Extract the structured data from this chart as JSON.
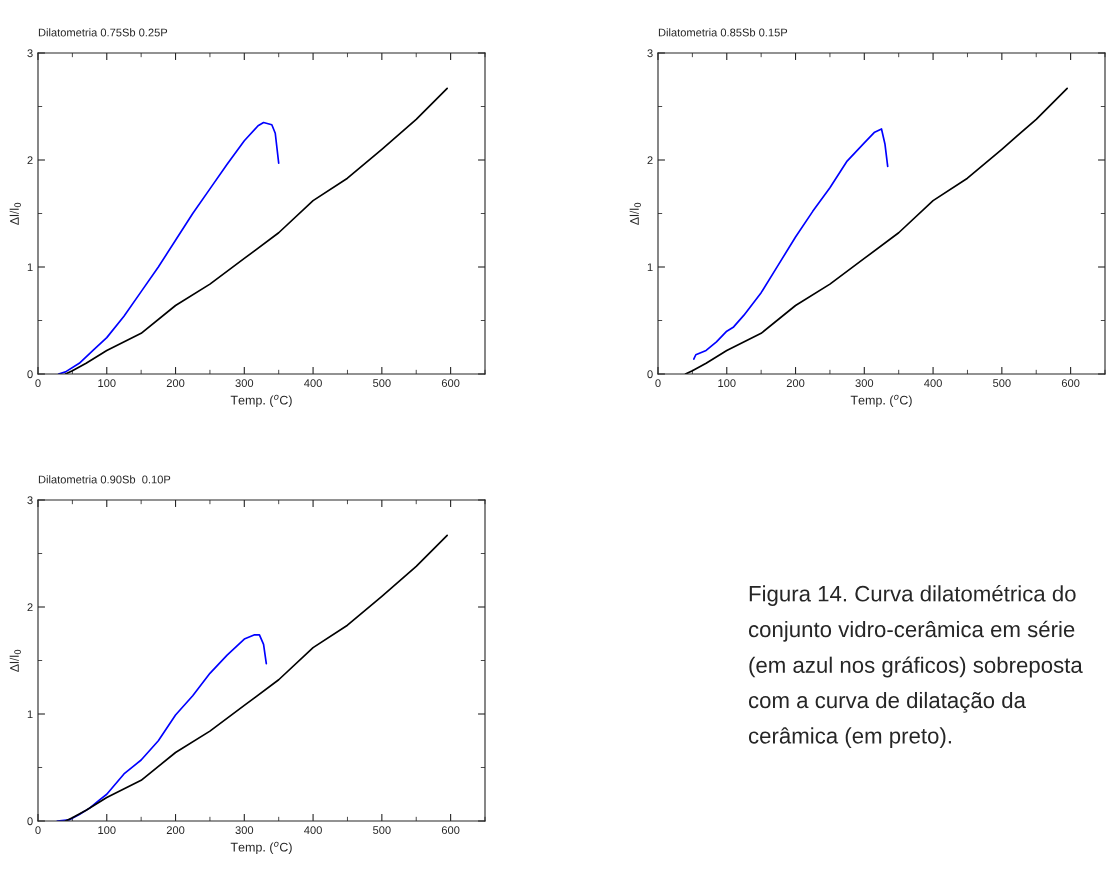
{
  "chart_data": [
    {
      "type": "line",
      "title": "Dilatometria 0.75Sb 0.25P",
      "xlabel": "Temp. ($^{o}$C)",
      "ylabel": "Δl/l$_{0}$",
      "xlim": [
        0,
        650
      ],
      "xticks": [
        0,
        100,
        200,
        300,
        400,
        500,
        600
      ],
      "ylim": [
        0,
        3
      ],
      "yticks": [
        0,
        1,
        2,
        3
      ],
      "grid": false,
      "legend": false,
      "marker": "none",
      "line_style": "solid",
      "series": [
        {
          "color": "#0000ff",
          "x": [
            30,
            40,
            60,
            80,
            100,
            125,
            150,
            175,
            200,
            225,
            250,
            275,
            300,
            320,
            328,
            340,
            345,
            350
          ],
          "values": [
            0,
            0.02,
            0.1,
            0.22,
            0.34,
            0.54,
            0.77,
            1.0,
            1.25,
            1.5,
            1.73,
            1.96,
            2.18,
            2.32,
            2.35,
            2.33,
            2.25,
            1.97
          ]
        },
        {
          "color": "#000000",
          "x": [
            40,
            50,
            70,
            100,
            150,
            200,
            250,
            300,
            350,
            400,
            450,
            500,
            550,
            595
          ],
          "values": [
            0,
            0.03,
            0.1,
            0.22,
            0.38,
            0.64,
            0.84,
            1.08,
            1.32,
            1.62,
            1.83,
            2.1,
            2.38,
            2.67
          ]
        }
      ]
    },
    {
      "type": "line",
      "title": "Dilatometria 0.85Sb 0.15P",
      "xlabel": "Temp. ($^{o}$C)",
      "ylabel": "Δl/l$_{0}$",
      "xlim": [
        0,
        650
      ],
      "xticks": [
        0,
        100,
        200,
        300,
        400,
        500,
        600
      ],
      "ylim": [
        0,
        3
      ],
      "yticks": [
        0,
        1,
        2,
        3
      ],
      "grid": false,
      "legend": false,
      "marker": "none",
      "line_style": "solid",
      "series": [
        {
          "color": "#0000ff",
          "x": [
            52,
            55,
            70,
            85,
            100,
            110,
            125,
            150,
            175,
            200,
            225,
            250,
            275,
            300,
            315,
            325,
            330,
            334
          ],
          "values": [
            0.14,
            0.18,
            0.22,
            0.3,
            0.4,
            0.44,
            0.55,
            0.76,
            1.02,
            1.28,
            1.52,
            1.74,
            1.99,
            2.16,
            2.26,
            2.29,
            2.15,
            1.94
          ]
        },
        {
          "color": "#000000",
          "x": [
            40,
            50,
            70,
            100,
            150,
            200,
            250,
            300,
            350,
            400,
            450,
            500,
            550,
            595
          ],
          "values": [
            0,
            0.03,
            0.1,
            0.22,
            0.38,
            0.64,
            0.84,
            1.08,
            1.32,
            1.62,
            1.83,
            2.1,
            2.38,
            2.67
          ]
        }
      ]
    },
    {
      "type": "line",
      "title": "Dilatometria 0.90Sb  0.10P",
      "xlabel": "Temp. ($^{o}$C)",
      "ylabel": "Δl/l$_{0}$",
      "xlim": [
        0,
        650
      ],
      "xticks": [
        0,
        100,
        200,
        300,
        400,
        500,
        600
      ],
      "ylim": [
        0,
        3
      ],
      "yticks": [
        0,
        1,
        2,
        3
      ],
      "grid": false,
      "legend": false,
      "marker": "none",
      "line_style": "solid",
      "annotations": [
        "Figura 14. Curva dilatométrica do conjunto vidro-cerâmica em série (em azul nos gráficos) sobreposta com a curva de dilatação da cerâmica (em preto)."
      ],
      "series": [
        {
          "color": "#0000ff",
          "x": [
            28,
            45,
            60,
            75,
            90,
            100,
            125,
            150,
            175,
            200,
            225,
            250,
            275,
            300,
            315,
            322,
            328,
            332
          ],
          "values": [
            0,
            0.01,
            0.06,
            0.12,
            0.2,
            0.25,
            0.44,
            0.57,
            0.75,
            0.99,
            1.17,
            1.38,
            1.55,
            1.7,
            1.74,
            1.74,
            1.65,
            1.47
          ]
        },
        {
          "color": "#000000",
          "x": [
            40,
            50,
            70,
            100,
            150,
            200,
            250,
            300,
            350,
            400,
            450,
            500,
            550,
            595
          ],
          "values": [
            0,
            0.03,
            0.1,
            0.22,
            0.38,
            0.64,
            0.84,
            1.08,
            1.32,
            1.62,
            1.83,
            2.1,
            2.38,
            2.67
          ]
        }
      ]
    }
  ]
}
